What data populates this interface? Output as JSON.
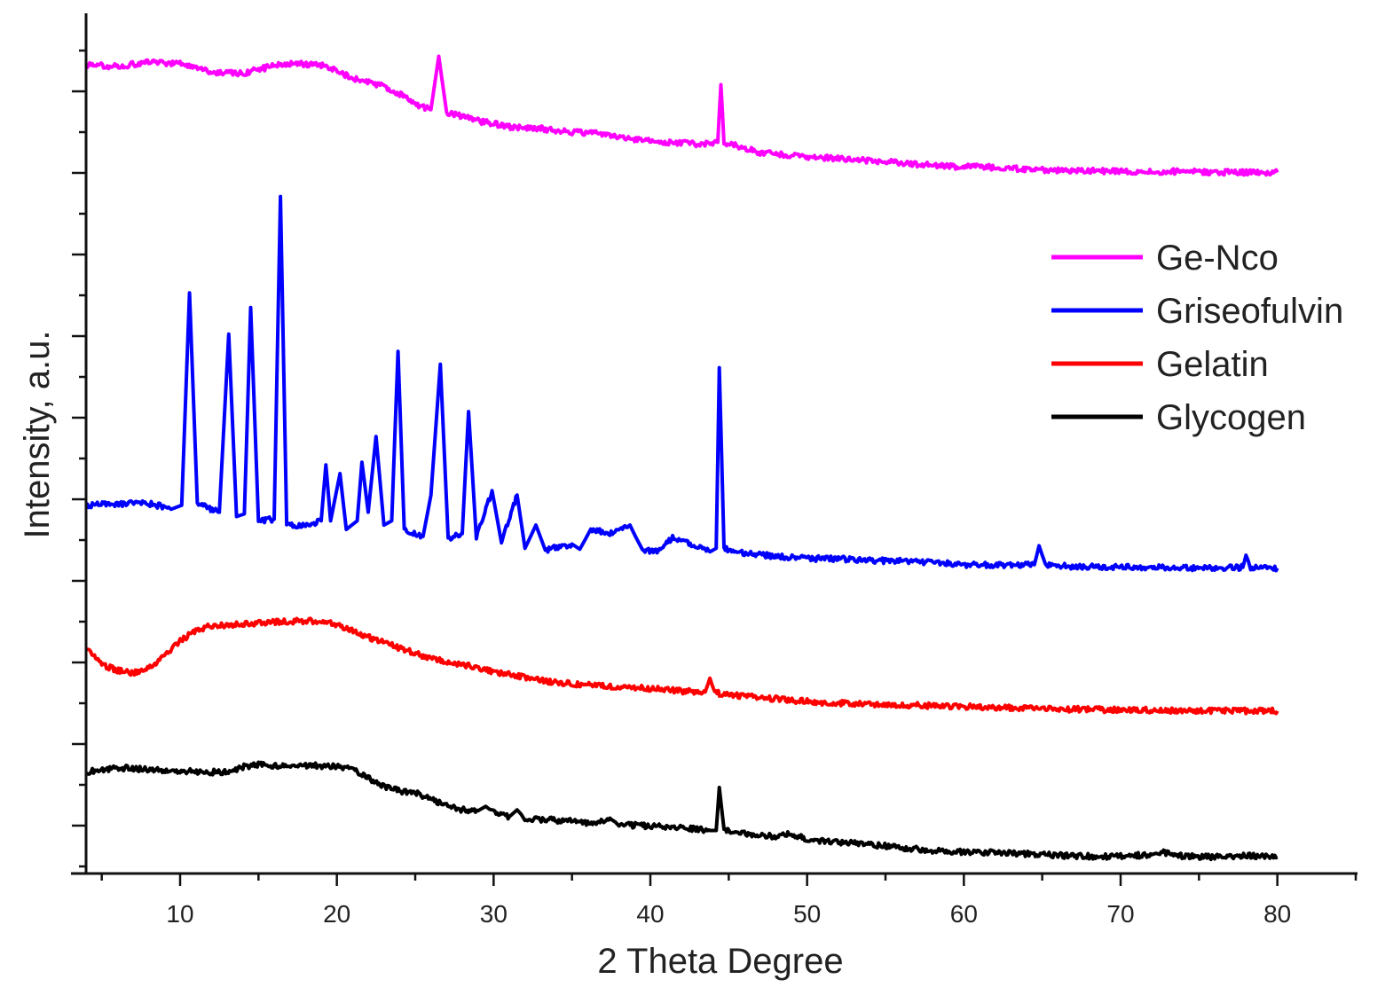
{
  "chart_data": {
    "type": "line",
    "title": "",
    "xlabel": "2 Theta Degree",
    "ylabel": "Intensity, a.u.",
    "xlim": [
      4,
      85
    ],
    "ylim": [
      0,
      1000
    ],
    "x_ticks": [
      10,
      20,
      30,
      40,
      50,
      60,
      70,
      80
    ],
    "x_tick_labels": [
      "10",
      "20",
      "30",
      "40",
      "50",
      "60",
      "70",
      "80"
    ],
    "grid": false,
    "legend_position": "right",
    "series": [
      {
        "name": "Ge-Nco",
        "color": "#ff00ff",
        "points": [
          [
            4,
            940
          ],
          [
            6,
            938
          ],
          [
            8,
            943
          ],
          [
            10,
            942
          ],
          [
            12,
            932
          ],
          [
            14,
            930
          ],
          [
            15,
            935
          ],
          [
            17,
            942
          ],
          [
            19,
            940
          ],
          [
            21,
            925
          ],
          [
            23,
            915
          ],
          [
            24,
            906
          ],
          [
            25,
            895
          ],
          [
            26,
            888
          ],
          [
            26.5,
            950
          ],
          [
            27,
            885
          ],
          [
            29,
            875
          ],
          [
            31,
            868
          ],
          [
            33,
            866
          ],
          [
            35,
            862
          ],
          [
            37,
            860
          ],
          [
            39,
            854
          ],
          [
            41,
            850
          ],
          [
            43,
            848
          ],
          [
            44.3,
            850
          ],
          [
            44.5,
            917
          ],
          [
            44.7,
            850
          ],
          [
            47,
            838
          ],
          [
            50,
            833
          ],
          [
            53,
            830
          ],
          [
            56,
            826
          ],
          [
            59,
            822
          ],
          [
            62,
            821
          ],
          [
            65,
            818
          ],
          [
            68,
            817
          ],
          [
            71,
            816
          ],
          [
            74,
            816
          ],
          [
            77,
            815
          ],
          [
            80,
            815
          ]
        ]
      },
      {
        "name": "Griseofulvin",
        "color": "#0000ff",
        "points": [
          [
            4,
            428
          ],
          [
            6,
            430
          ],
          [
            8,
            430
          ],
          [
            9.5,
            424
          ],
          [
            10.1,
            428
          ],
          [
            10.6,
            675
          ],
          [
            11.1,
            430
          ],
          [
            12.5,
            420
          ],
          [
            13.1,
            627
          ],
          [
            13.6,
            415
          ],
          [
            14.1,
            418
          ],
          [
            14.5,
            658
          ],
          [
            15,
            410
          ],
          [
            16,
            412
          ],
          [
            16.4,
            787
          ],
          [
            16.8,
            405
          ],
          [
            18,
            405
          ],
          [
            19,
            410
          ],
          [
            19.3,
            475
          ],
          [
            19.6,
            410
          ],
          [
            20.2,
            465
          ],
          [
            20.6,
            400
          ],
          [
            21.3,
            410
          ],
          [
            21.6,
            478
          ],
          [
            22,
            420
          ],
          [
            22.5,
            508
          ],
          [
            23,
            405
          ],
          [
            23.5,
            410
          ],
          [
            23.9,
            607
          ],
          [
            24.3,
            400
          ],
          [
            25.5,
            392
          ],
          [
            26,
            440
          ],
          [
            26.6,
            592
          ],
          [
            27.1,
            390
          ],
          [
            28,
            395
          ],
          [
            28.4,
            537
          ],
          [
            28.9,
            390
          ],
          [
            29.9,
            445
          ],
          [
            30.5,
            385
          ],
          [
            31.5,
            440
          ],
          [
            32,
            378
          ],
          [
            32.7,
            405
          ],
          [
            33.3,
            376
          ],
          [
            35,
            383
          ],
          [
            35.5,
            377
          ],
          [
            36.2,
            400
          ],
          [
            37.5,
            395
          ],
          [
            38.7,
            405
          ],
          [
            39.5,
            375
          ],
          [
            40.5,
            376
          ],
          [
            41.5,
            391
          ],
          [
            42.7,
            382
          ],
          [
            43.8,
            374
          ],
          [
            44.2,
            378
          ],
          [
            44.4,
            588
          ],
          [
            44.7,
            378
          ],
          [
            46,
            372
          ],
          [
            48,
            369
          ],
          [
            50,
            366
          ],
          [
            52,
            366
          ],
          [
            54,
            364
          ],
          [
            56,
            363
          ],
          [
            58,
            362
          ],
          [
            60,
            359
          ],
          [
            62,
            359
          ],
          [
            64.5,
            359
          ],
          [
            64.8,
            381
          ],
          [
            65.2,
            359
          ],
          [
            67,
            357
          ],
          [
            70,
            356
          ],
          [
            73,
            356
          ],
          [
            76,
            355
          ],
          [
            77.8,
            356
          ],
          [
            78,
            370
          ],
          [
            78.3,
            356
          ],
          [
            80,
            355
          ]
        ]
      },
      {
        "name": "Gelatin",
        "color": "#ff0000",
        "points": [
          [
            4,
            262
          ],
          [
            5,
            243
          ],
          [
            6,
            236
          ],
          [
            7,
            233
          ],
          [
            8,
            238
          ],
          [
            9,
            253
          ],
          [
            10,
            270
          ],
          [
            11,
            283
          ],
          [
            12,
            288
          ],
          [
            14,
            290
          ],
          [
            16,
            292
          ],
          [
            18,
            294
          ],
          [
            20,
            290
          ],
          [
            22,
            275
          ],
          [
            24,
            262
          ],
          [
            26,
            250
          ],
          [
            28,
            243
          ],
          [
            30,
            235
          ],
          [
            32,
            228
          ],
          [
            34,
            222
          ],
          [
            36,
            219
          ],
          [
            38,
            217
          ],
          [
            40,
            215
          ],
          [
            42,
            212
          ],
          [
            43.5,
            211
          ],
          [
            43.8,
            227
          ],
          [
            44.1,
            210
          ],
          [
            46,
            206
          ],
          [
            48,
            203
          ],
          [
            50,
            200
          ],
          [
            52,
            198
          ],
          [
            54,
            197
          ],
          [
            56,
            196
          ],
          [
            58,
            195
          ],
          [
            60,
            194
          ],
          [
            62,
            193
          ],
          [
            64,
            192
          ],
          [
            66,
            191
          ],
          [
            68,
            191
          ],
          [
            70,
            190
          ],
          [
            72,
            190
          ],
          [
            74,
            189
          ],
          [
            76,
            189
          ],
          [
            78,
            189
          ],
          [
            80,
            189
          ]
        ]
      },
      {
        "name": "Glycogen",
        "color": "#000000",
        "points": [
          [
            4,
            118
          ],
          [
            6,
            123
          ],
          [
            8,
            121
          ],
          [
            10,
            119
          ],
          [
            12,
            118
          ],
          [
            13,
            118
          ],
          [
            14,
            124
          ],
          [
            15,
            127
          ],
          [
            16,
            125
          ],
          [
            18,
            126
          ],
          [
            20,
            124
          ],
          [
            21,
            122
          ],
          [
            22,
            111
          ],
          [
            23,
            101
          ],
          [
            24,
            96
          ],
          [
            25,
            94
          ],
          [
            26,
            86
          ],
          [
            27,
            79
          ],
          [
            28,
            74
          ],
          [
            29,
            73
          ],
          [
            29.5,
            78
          ],
          [
            30,
            71
          ],
          [
            31,
            66
          ],
          [
            31.5,
            74
          ],
          [
            32,
            64
          ],
          [
            34,
            62
          ],
          [
            36,
            59
          ],
          [
            37.5,
            63
          ],
          [
            38,
            57
          ],
          [
            40,
            55
          ],
          [
            42,
            53
          ],
          [
            43.8,
            50
          ],
          [
            44.2,
            50
          ],
          [
            44.4,
            100
          ],
          [
            44.7,
            50
          ],
          [
            46,
            46
          ],
          [
            48,
            43
          ],
          [
            49,
            46
          ],
          [
            50,
            40
          ],
          [
            52,
            36
          ],
          [
            54,
            34
          ],
          [
            56,
            30
          ],
          [
            58,
            27
          ],
          [
            60,
            25
          ],
          [
            62,
            24
          ],
          [
            64,
            23
          ],
          [
            66,
            21
          ],
          [
            68,
            20
          ],
          [
            70,
            20
          ],
          [
            72,
            22
          ],
          [
            72.5,
            25
          ],
          [
            74,
            20
          ],
          [
            76,
            19
          ],
          [
            78,
            21
          ],
          [
            80,
            19
          ]
        ]
      }
    ]
  }
}
